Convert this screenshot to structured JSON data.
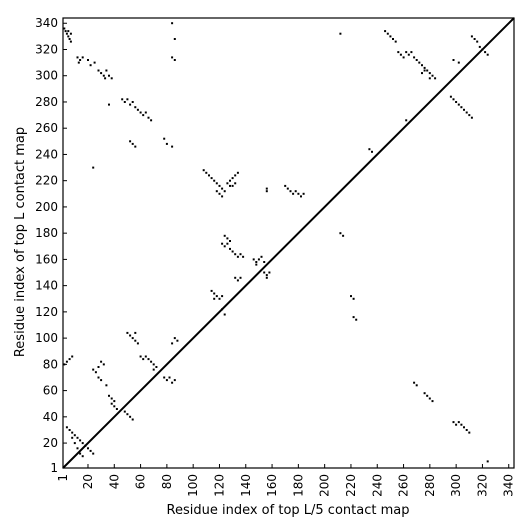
{
  "chart_data": {
    "type": "scatter",
    "title": "",
    "xlabel": "Residue index of top L/5 contact map",
    "ylabel": "Residue index of top L contact map",
    "xlim": [
      1,
      344
    ],
    "ylim": [
      1,
      344
    ],
    "x_ticks": [
      1,
      20,
      40,
      60,
      80,
      100,
      120,
      140,
      160,
      180,
      200,
      220,
      240,
      260,
      280,
      300,
      320,
      340
    ],
    "y_ticks": [
      1,
      20,
      40,
      60,
      80,
      100,
      120,
      140,
      160,
      180,
      200,
      220,
      240,
      260,
      280,
      300,
      320,
      340
    ],
    "diagonal": [
      [
        1,
        1
      ],
      [
        344,
        344
      ]
    ],
    "grid": false,
    "colors": {
      "points": "#000000",
      "diagonal": "#000000",
      "axes": "#000000"
    },
    "series": [
      {
        "label_side": "upper",
        "points": [
          [
            2,
            336
          ],
          [
            3,
            334
          ],
          [
            4,
            332
          ],
          [
            5,
            330
          ],
          [
            6,
            328
          ],
          [
            7,
            326
          ],
          [
            5,
            334
          ],
          [
            7,
            332
          ],
          [
            12,
            314
          ],
          [
            14,
            312
          ],
          [
            16,
            314
          ],
          [
            13,
            310
          ],
          [
            20,
            312
          ],
          [
            25,
            310
          ],
          [
            22,
            308
          ],
          [
            28,
            304
          ],
          [
            30,
            302
          ],
          [
            32,
            300
          ],
          [
            34,
            304
          ],
          [
            36,
            300
          ],
          [
            33,
            298
          ],
          [
            38,
            298
          ],
          [
            36,
            278
          ],
          [
            46,
            282
          ],
          [
            48,
            280
          ],
          [
            50,
            282
          ],
          [
            52,
            278
          ],
          [
            54,
            280
          ],
          [
            56,
            276
          ],
          [
            58,
            274
          ],
          [
            60,
            272
          ],
          [
            62,
            270
          ],
          [
            64,
            272
          ],
          [
            66,
            268
          ],
          [
            68,
            266
          ],
          [
            52,
            250
          ],
          [
            54,
            248
          ],
          [
            56,
            246
          ],
          [
            78,
            252
          ],
          [
            80,
            248
          ],
          [
            84,
            246
          ],
          [
            24,
            230
          ],
          [
            108,
            228
          ],
          [
            110,
            226
          ],
          [
            112,
            224
          ],
          [
            114,
            222
          ],
          [
            116,
            220
          ],
          [
            118,
            218
          ],
          [
            120,
            216
          ],
          [
            122,
            214
          ],
          [
            124,
            212
          ],
          [
            118,
            212
          ],
          [
            120,
            210
          ],
          [
            122,
            208
          ],
          [
            126,
            218
          ],
          [
            128,
            220
          ],
          [
            130,
            222
          ],
          [
            132,
            224
          ],
          [
            134,
            226
          ],
          [
            130,
            216
          ],
          [
            132,
            218
          ],
          [
            128,
            216
          ],
          [
            156,
            214
          ],
          [
            156,
            212
          ],
          [
            170,
            216
          ],
          [
            172,
            214
          ],
          [
            174,
            212
          ],
          [
            176,
            210
          ],
          [
            178,
            212
          ],
          [
            180,
            210
          ],
          [
            182,
            208
          ],
          [
            184,
            210
          ],
          [
            84,
            340
          ],
          [
            86,
            328
          ],
          [
            84,
            314
          ],
          [
            86,
            312
          ],
          [
            124,
            178
          ],
          [
            126,
            176
          ],
          [
            128,
            174
          ],
          [
            122,
            172
          ],
          [
            124,
            170
          ],
          [
            126,
            172
          ],
          [
            128,
            168
          ],
          [
            130,
            166
          ],
          [
            132,
            164
          ],
          [
            134,
            162
          ],
          [
            136,
            164
          ],
          [
            138,
            162
          ],
          [
            146,
            160
          ],
          [
            148,
            158
          ],
          [
            150,
            160
          ],
          [
            148,
            156
          ],
          [
            152,
            162
          ],
          [
            154,
            158
          ],
          [
            154,
            150
          ],
          [
            156,
            148
          ],
          [
            158,
            150
          ],
          [
            156,
            146
          ],
          [
            132,
            146
          ],
          [
            134,
            144
          ],
          [
            136,
            146
          ],
          [
            114,
            136
          ],
          [
            116,
            134
          ],
          [
            118,
            132
          ],
          [
            120,
            130
          ],
          [
            122,
            132
          ],
          [
            116,
            130
          ],
          [
            122,
            122
          ],
          [
            124,
            118
          ],
          [
            50,
            104
          ],
          [
            52,
            102
          ],
          [
            54,
            100
          ],
          [
            56,
            98
          ],
          [
            58,
            96
          ],
          [
            56,
            104
          ],
          [
            60,
            86
          ],
          [
            62,
            84
          ],
          [
            64,
            86
          ],
          [
            66,
            84
          ],
          [
            68,
            82
          ],
          [
            70,
            80
          ],
          [
            72,
            78
          ],
          [
            70,
            76
          ],
          [
            86,
            100
          ],
          [
            88,
            98
          ],
          [
            84,
            96
          ],
          [
            2,
            80
          ],
          [
            4,
            82
          ],
          [
            6,
            84
          ],
          [
            8,
            86
          ],
          [
            24,
            76
          ],
          [
            26,
            74
          ],
          [
            28,
            78
          ],
          [
            30,
            82
          ],
          [
            32,
            80
          ],
          [
            28,
            70
          ],
          [
            30,
            68
          ],
          [
            34,
            64
          ],
          [
            36,
            56
          ],
          [
            38,
            54
          ],
          [
            40,
            52
          ],
          [
            38,
            50
          ],
          [
            40,
            48
          ],
          [
            42,
            46
          ],
          [
            48,
            44
          ],
          [
            50,
            42
          ],
          [
            52,
            40
          ],
          [
            54,
            38
          ],
          [
            78,
            70
          ],
          [
            80,
            68
          ],
          [
            82,
            70
          ],
          [
            84,
            66
          ],
          [
            86,
            68
          ],
          [
            4,
            32
          ],
          [
            6,
            30
          ],
          [
            8,
            28
          ],
          [
            10,
            26
          ],
          [
            12,
            24
          ],
          [
            14,
            22
          ],
          [
            16,
            20
          ],
          [
            18,
            18
          ],
          [
            20,
            16
          ],
          [
            22,
            14
          ],
          [
            24,
            12
          ],
          [
            8,
            24
          ],
          [
            10,
            20
          ],
          [
            12,
            16
          ],
          [
            14,
            12
          ],
          [
            16,
            10
          ]
        ]
      },
      {
        "label_side": "lower",
        "points": [
          [
            212,
            332
          ],
          [
            246,
            334
          ],
          [
            248,
            332
          ],
          [
            250,
            330
          ],
          [
            252,
            328
          ],
          [
            254,
            326
          ],
          [
            256,
            318
          ],
          [
            258,
            316
          ],
          [
            260,
            314
          ],
          [
            262,
            318
          ],
          [
            264,
            316
          ],
          [
            266,
            318
          ],
          [
            268,
            314
          ],
          [
            270,
            312
          ],
          [
            272,
            310
          ],
          [
            274,
            308
          ],
          [
            276,
            306
          ],
          [
            278,
            304
          ],
          [
            280,
            302
          ],
          [
            282,
            300
          ],
          [
            284,
            298
          ],
          [
            274,
            302
          ],
          [
            276,
            304
          ],
          [
            280,
            298
          ],
          [
            298,
            312
          ],
          [
            302,
            310
          ],
          [
            312,
            330
          ],
          [
            314,
            328
          ],
          [
            316,
            326
          ],
          [
            318,
            322
          ],
          [
            320,
            320
          ],
          [
            322,
            318
          ],
          [
            324,
            316
          ],
          [
            296,
            284
          ],
          [
            298,
            282
          ],
          [
            300,
            280
          ],
          [
            302,
            278
          ],
          [
            304,
            276
          ],
          [
            306,
            274
          ],
          [
            308,
            272
          ],
          [
            310,
            270
          ],
          [
            312,
            268
          ],
          [
            262,
            266
          ],
          [
            234,
            244
          ],
          [
            236,
            242
          ],
          [
            212,
            180
          ],
          [
            214,
            178
          ],
          [
            220,
            132
          ],
          [
            222,
            130
          ],
          [
            222,
            116
          ],
          [
            224,
            114
          ],
          [
            268,
            66
          ],
          [
            270,
            64
          ],
          [
            276,
            58
          ],
          [
            278,
            56
          ],
          [
            280,
            54
          ],
          [
            282,
            52
          ],
          [
            298,
            36
          ],
          [
            300,
            34
          ],
          [
            302,
            36
          ],
          [
            304,
            34
          ],
          [
            306,
            32
          ],
          [
            308,
            30
          ],
          [
            310,
            28
          ],
          [
            324,
            6
          ]
        ]
      }
    ]
  }
}
